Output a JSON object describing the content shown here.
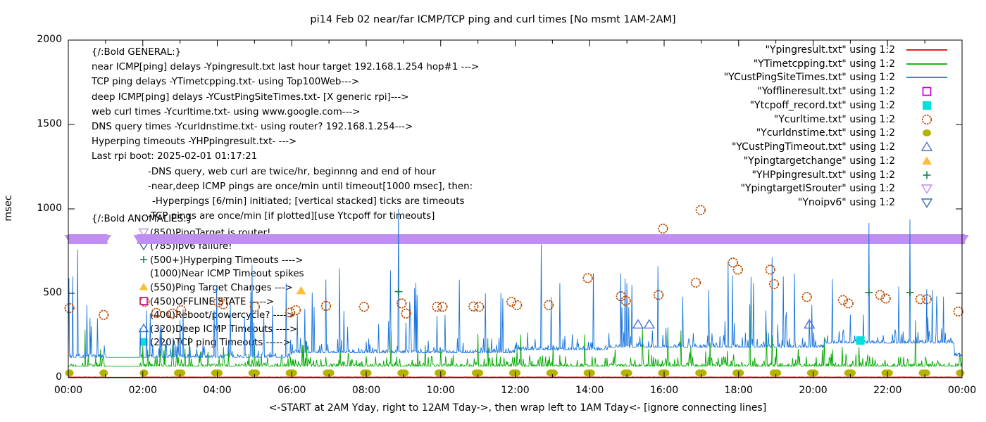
{
  "title": "pi14 Feb 02  near/far ICMP/TCP ping and curl times [No msmt 1AM-2AM]",
  "axes": {
    "ylabel": "msec",
    "xlabel": "<-START at 2AM Yday, right to 12AM Tday->, then wrap left to 1AM Tday<- [ignore connecting lines]",
    "y_range": [
      0,
      2000
    ],
    "x_range_hours": [
      0,
      24
    ],
    "y_ticks": [
      {
        "v": 0,
        "label": "0"
      },
      {
        "v": 500,
        "label": "500"
      },
      {
        "v": 1000,
        "label": "1000"
      },
      {
        "v": 1500,
        "label": "1500"
      },
      {
        "v": 2000,
        "label": "2000"
      }
    ],
    "x_ticks": [
      {
        "h": 0,
        "label": "00:00"
      },
      {
        "h": 2,
        "label": "02:00"
      },
      {
        "h": 4,
        "label": "04:00"
      },
      {
        "h": 6,
        "label": "06:00"
      },
      {
        "h": 8,
        "label": "08:00"
      },
      {
        "h": 10,
        "label": "10:00"
      },
      {
        "h": 12,
        "label": "12:00"
      },
      {
        "h": 14,
        "label": "14:00"
      },
      {
        "h": 16,
        "label": "16:00"
      },
      {
        "h": 18,
        "label": "18:00"
      },
      {
        "h": 20,
        "label": "20:00"
      },
      {
        "h": 22,
        "label": "22:00"
      },
      {
        "h": 24,
        "label": "00:00"
      }
    ],
    "grid": false
  },
  "legend": {
    "position": "top-right-inside",
    "entries": [
      {
        "label": "\"Ypingresult.txt\" using 1:2",
        "style": "line",
        "color": "#e00000"
      },
      {
        "label": "\"YTimetcpping.txt\" using 1:2",
        "style": "line",
        "color": "#00a800"
      },
      {
        "label": "\"YCustPingSiteTimes.txt\" using 1:2",
        "style": "line",
        "color": "#1874dc"
      },
      {
        "label": "\"Yofflineresult.txt\" using 1:2",
        "style": "square-open",
        "color": "#cc00cc"
      },
      {
        "label": "\"Ytcpoff_record.txt\" using 1:2",
        "style": "square-filled",
        "color": "#00e0e0"
      },
      {
        "label": "\"Ycurltime.txt\" using 1:2",
        "style": "circle-open",
        "color": "#bf4b00"
      },
      {
        "label": "\"Ycurldnstime.txt\" using 1:2",
        "style": "circle-filled",
        "color": "#b3b300"
      },
      {
        "label": "\"YCustPingTimeout.txt\" using 1:2",
        "style": "triangle-up-open",
        "color": "#4d6fd6"
      },
      {
        "label": "\"Ypingtargetchange\" using 1:2",
        "style": "triangle-up-filled",
        "color": "#fbbd3a"
      },
      {
        "label": "\"YHPpingresult.txt\" using 1:2",
        "style": "plus",
        "color": "#1a8050"
      },
      {
        "label": "\"YpingtargetISrouter\" using 1:2",
        "style": "triangle-down-open",
        "color": "#c08df0"
      },
      {
        "label": "\"Ynoipv6\" using 1:2",
        "style": "triangle-down-open",
        "color": "#3a6ea5"
      }
    ]
  },
  "annotations": {
    "general": {
      "heading": "{/:Bold GENERAL:}",
      "lines": [
        {
          "indent": 0,
          "text": "near ICMP[ping] delays -Ypingresult.txt last hour target 192.168.1.254 hop#1 --->"
        },
        {
          "indent": 0,
          "text": "TCP ping delays -YTimetcpping.txt- using Top100Web--->"
        },
        {
          "indent": 0,
          "text": "deep ICMP[ping] delays -YCustPingSiteTimes.txt- [X generic rpi]--->"
        },
        {
          "indent": 0,
          "text": "web curl times -Ycurltime.txt- using www.google.com--->"
        },
        {
          "indent": 0,
          "text": "DNS query times -Ycurldnstime.txt- using router? 192.168.1.254--->"
        },
        {
          "indent": 0,
          "text": "Hyperping timeouts -YHPpingresult.txt- --->"
        },
        {
          "indent": 0,
          "text": "Last rpi boot: 2025-02-01 01:17:21"
        },
        {
          "indent": 80,
          "text": "-DNS query, web curl are twice/hr, beginnng and end of hour"
        },
        {
          "indent": 80,
          "text": "-near,deep ICMP pings are once/min until timeout[1000 msec], then:"
        },
        {
          "indent": 86,
          "text": "-Hyperpings [6/min] initiated; [vertical stacked] ticks are timeouts"
        },
        {
          "indent": 80,
          "text": "-TCP pings are once/min [if plotted][use Ytcpoff for timeouts]"
        }
      ]
    },
    "anomalies": {
      "heading": "{/:Bold ANOMALIES:}",
      "lines": [
        {
          "icon": "triangle-down-open",
          "color": "#c08df0",
          "text": "(850)PingTarget is router!"
        },
        {
          "icon": "triangle-down-open",
          "color": "#3a6ea5",
          "text": "(785)ipv6 failure!"
        },
        {
          "icon": "plus",
          "color": "#1a8050",
          "text": "(500+)Hyperping Timeouts ---->"
        },
        {
          "icon": "none",
          "color": "#000000",
          "text": "(1000)Near ICMP Timeout spikes"
        },
        {
          "icon": "triangle-up-filled",
          "color": "#fbbd3a",
          "text": "(550)Ping Target Changes --->"
        },
        {
          "icon": "square-open",
          "color": "#cc00cc",
          "text": "(450)OFFLINE STATE ----->"
        },
        {
          "icon": "none",
          "color": "#000000",
          "text": "(400)Reboot/powercycle? ---->"
        },
        {
          "icon": "triangle-up-open",
          "color": "#4d6fd6",
          "text": "(320)Deep ICMP Timeouts ---->"
        },
        {
          "icon": "square-filled",
          "color": "#00e0e0",
          "text": "(220)TCP ping Timeouts ----->"
        }
      ]
    }
  },
  "chart_data": {
    "type": "line",
    "x_unit": "hour-of-day",
    "y_unit": "msec",
    "no_measurement_gap_hours": [
      1.0,
      1.93
    ],
    "series": [
      {
        "name": "Ypingresult.txt",
        "style": "line",
        "color": "#e00000",
        "seed": 1,
        "baseline": [
          [
            0,
            3
          ]
        ],
        "noise": [
          [
            1,
            0,
            2
          ]
        ],
        "spikes": []
      },
      {
        "name": "YTimetcpping.txt",
        "style": "line",
        "color": "#00a800",
        "seed": 13,
        "baseline": [
          [
            0,
            68
          ]
        ],
        "noise": [
          [
            0.45,
            0,
            0
          ],
          [
            0.8,
            2,
            14
          ],
          [
            0.95,
            14,
            60
          ],
          [
            0.99,
            60,
            130
          ],
          [
            1,
            130,
            240
          ]
        ],
        "spikes": [
          [
            2.6,
            200
          ],
          [
            7.3,
            180
          ],
          [
            12.15,
            255
          ],
          [
            16.45,
            280
          ],
          [
            18.3,
            435
          ],
          [
            18.9,
            250
          ],
          [
            20.3,
            240
          ],
          [
            22.75,
            340
          ]
        ]
      },
      {
        "name": "YCustPingSiteTimes.txt",
        "style": "line",
        "color": "#1874dc",
        "seed": 7,
        "baseline": [
          [
            0,
            120
          ],
          [
            6,
            148
          ],
          [
            12,
            165
          ],
          [
            14.5,
            180
          ],
          [
            20.3,
            205
          ],
          [
            23.8,
            130
          ]
        ],
        "noise": [
          [
            0.5,
            0,
            0
          ],
          [
            0.82,
            4,
            18
          ],
          [
            0.93,
            18,
            90
          ],
          [
            0.975,
            90,
            260
          ],
          [
            1,
            260,
            560
          ]
        ],
        "spikes": [
          [
            0.12,
            600
          ],
          [
            0.25,
            760
          ],
          [
            0.5,
            430
          ],
          [
            2.2,
            380
          ],
          [
            2.5,
            300
          ],
          [
            3.0,
            340
          ],
          [
            4.9,
            510
          ],
          [
            5.85,
            560
          ],
          [
            6.6,
            420
          ],
          [
            7.5,
            300
          ],
          [
            8.87,
            1000
          ],
          [
            9.3,
            530
          ],
          [
            10.5,
            580
          ],
          [
            11.2,
            500
          ],
          [
            12.7,
            790
          ],
          [
            13.2,
            560
          ],
          [
            14.1,
            620
          ],
          [
            15.0,
            560
          ],
          [
            16.5,
            480
          ],
          [
            17.2,
            520
          ],
          [
            18.4,
            560
          ],
          [
            19.2,
            600
          ],
          [
            19.9,
            350
          ],
          [
            21.5,
            917
          ],
          [
            22.3,
            540
          ],
          [
            22.6,
            938
          ],
          [
            23.2,
            520
          ],
          [
            23.5,
            480
          ]
        ]
      },
      {
        "name": "Ycurltime.txt",
        "style": "scatter",
        "marker": "circle-open",
        "color": "#bf4b00",
        "points": [
          [
            0.03,
            412
          ],
          [
            0.95,
            372
          ],
          [
            2.05,
            450
          ],
          [
            2.36,
            384
          ],
          [
            2.8,
            380
          ],
          [
            3.03,
            400
          ],
          [
            4.03,
            448
          ],
          [
            4.16,
            435
          ],
          [
            5.01,
            420
          ],
          [
            5.96,
            386
          ],
          [
            6.11,
            400
          ],
          [
            6.92,
            425
          ],
          [
            7.94,
            420
          ],
          [
            8.95,
            440
          ],
          [
            9.07,
            380
          ],
          [
            9.9,
            420
          ],
          [
            10.05,
            420
          ],
          [
            10.88,
            422
          ],
          [
            11.03,
            420
          ],
          [
            11.9,
            450
          ],
          [
            12.05,
            430
          ],
          [
            12.9,
            430
          ],
          [
            13.95,
            590
          ],
          [
            14.84,
            482
          ],
          [
            14.97,
            456
          ],
          [
            15.85,
            490
          ],
          [
            15.97,
            883
          ],
          [
            16.85,
            563
          ],
          [
            16.98,
            993
          ],
          [
            17.85,
            682
          ],
          [
            17.98,
            640
          ],
          [
            18.85,
            640
          ],
          [
            18.95,
            554
          ],
          [
            19.83,
            478
          ],
          [
            20.8,
            460
          ],
          [
            20.95,
            440
          ],
          [
            21.8,
            490
          ],
          [
            21.95,
            469
          ],
          [
            22.88,
            465
          ],
          [
            23.05,
            465
          ],
          [
            23.9,
            392
          ]
        ]
      },
      {
        "name": "Ycurldnstime.txt",
        "style": "scatter",
        "marker": "circle-filled",
        "color": "#b3b300",
        "value": 28,
        "hours": [
          0.03,
          0.95,
          2.03,
          2.95,
          3.03,
          3.95,
          4.03,
          4.95,
          5.03,
          5.95,
          6.03,
          6.95,
          7.03,
          7.95,
          8.03,
          8.95,
          9.03,
          9.95,
          10.03,
          10.95,
          11.03,
          11.95,
          12.03,
          12.95,
          13.03,
          13.95,
          14.03,
          14.95,
          15.03,
          15.95,
          16.03,
          16.95,
          17.03,
          17.95,
          18.03,
          18.95,
          19.03,
          19.95,
          20.03,
          20.95,
          21.03,
          21.95,
          22.03,
          22.95,
          23.03,
          23.95
        ]
      },
      {
        "name": "YCustPingTimeout.txt",
        "style": "scatter",
        "marker": "triangle-up-open",
        "color": "#4d6fd6",
        "points": [
          [
            15.3,
            315
          ],
          [
            15.6,
            315
          ],
          [
            19.9,
            315
          ]
        ]
      },
      {
        "name": "Ypingtargetchange",
        "style": "scatter",
        "marker": "triangle-up-filled",
        "color": "#fbbd3a",
        "points": [
          [
            6.25,
            515
          ]
        ]
      },
      {
        "name": "YHPpingresult.txt",
        "style": "scatter",
        "marker": "plus",
        "color": "#1a8050",
        "points": [
          [
            8.87,
            510
          ],
          [
            21.5,
            505
          ],
          [
            22.6,
            505
          ]
        ]
      },
      {
        "name": "YpingtargetISrouter",
        "style": "band",
        "color": "#c08df0",
        "value": 850,
        "segments": [
          [
            0,
            1.05
          ],
          [
            1.85,
            24.08
          ]
        ]
      },
      {
        "name": "Yofflineresult.txt",
        "style": "scatter",
        "marker": "square-open",
        "color": "#cc00cc",
        "points": []
      },
      {
        "name": "Ytcpoff_record.txt",
        "style": "scatter",
        "marker": "square-filled",
        "color": "#00e0e0",
        "points": [
          [
            21.27,
            220
          ]
        ]
      },
      {
        "name": "Ynoipv6",
        "style": "scatter",
        "marker": "triangle-down-open",
        "color": "#3a6ea5",
        "points": []
      }
    ]
  }
}
